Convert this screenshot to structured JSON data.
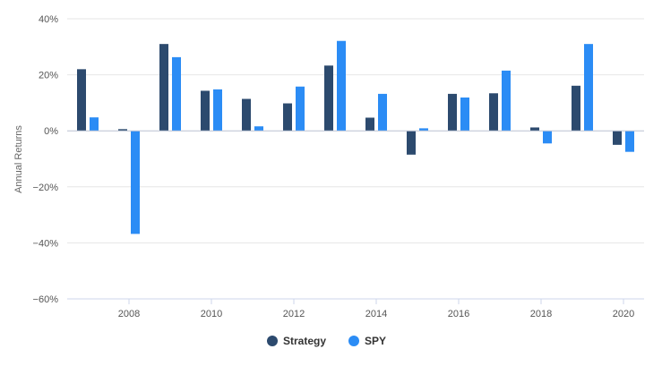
{
  "chart_data": {
    "type": "bar",
    "title": "",
    "xlabel": "",
    "ylabel": "Annual Returns",
    "x": [
      2007,
      2008,
      2009,
      2010,
      2011,
      2012,
      2013,
      2014,
      2015,
      2016,
      2017,
      2018,
      2019,
      2020
    ],
    "x_ticks": [
      "2008",
      "2010",
      "2012",
      "2014",
      "2016",
      "2018",
      "2020"
    ],
    "y_ticks": [
      "40%",
      "20%",
      "0%",
      "−20%",
      "−40%",
      "−60%"
    ],
    "ylim": [
      -60,
      40
    ],
    "grid": true,
    "legend_position": "bottom-center",
    "series": [
      {
        "name": "Strategy",
        "color": "#2c4a6e",
        "values": [
          22.0,
          0.6,
          31.0,
          14.3,
          11.4,
          9.8,
          23.3,
          4.7,
          -8.5,
          13.2,
          13.4,
          1.2,
          16.1,
          -5.0
        ]
      },
      {
        "name": "SPY",
        "color": "#2b8cf5",
        "values": [
          4.8,
          -36.8,
          26.3,
          14.8,
          1.6,
          15.8,
          32.1,
          13.2,
          0.9,
          11.9,
          21.5,
          -4.5,
          31.0,
          -7.5
        ]
      }
    ]
  }
}
